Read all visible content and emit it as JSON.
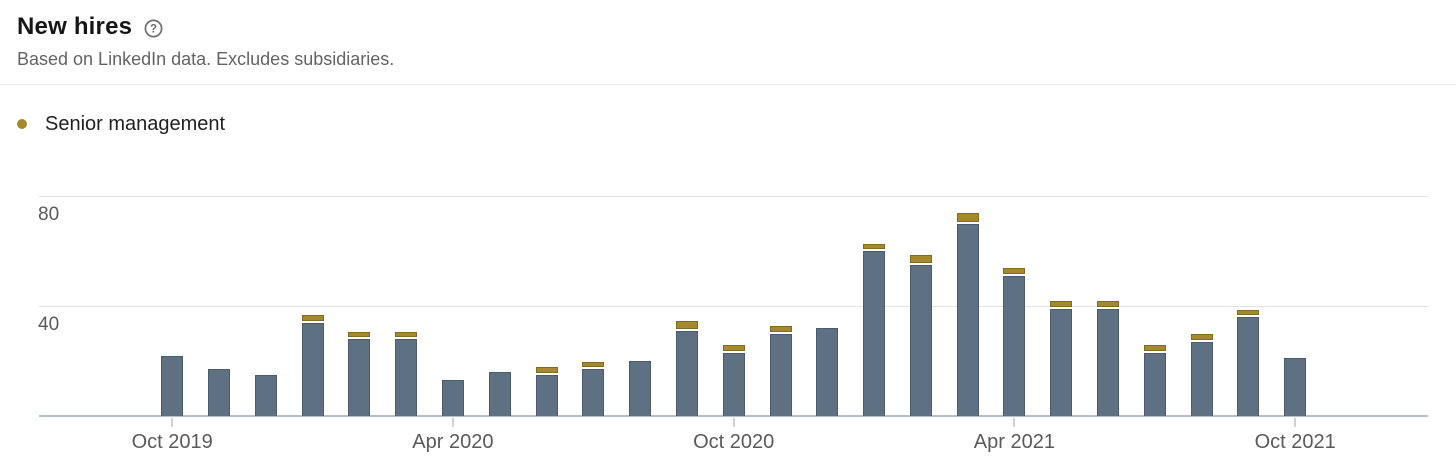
{
  "header": {
    "title": "New hires",
    "subtitle": "Based on LinkedIn data. Excludes subsidiaries.",
    "help_icon": "question-mark-circle-icon"
  },
  "legend": {
    "items": [
      {
        "label": "Senior management",
        "color": "#a5892c"
      }
    ]
  },
  "colors": {
    "base_bar_fill": "#5d7183",
    "base_bar_border": "#4a5c6c",
    "senior_fill": "#a5892c",
    "senior_border": "#7f6c20",
    "gridline": "#e3e3e3",
    "baseline": "#b5bfcb",
    "axis_text": "#5a5a5a"
  },
  "chart_data": {
    "type": "bar",
    "stacked": true,
    "title": "New hires",
    "xlabel": "",
    "ylabel": "",
    "ylim": [
      0,
      88
    ],
    "y_ticks": [
      40,
      80
    ],
    "grid": "horizontal",
    "legend_position": "top-left",
    "categories": [
      "Oct 2019",
      "Nov 2019",
      "Dec 2019",
      "Jan 2020",
      "Feb 2020",
      "Mar 2020",
      "Apr 2020",
      "May 2020",
      "Jun 2020",
      "Jul 2020",
      "Aug 2020",
      "Sep 2020",
      "Oct 2020",
      "Nov 2020",
      "Dec 2020",
      "Jan 2021",
      "Feb 2021",
      "Mar 2021",
      "Apr 2021",
      "May 2021",
      "Jun 2021",
      "Jul 2021",
      "Aug 2021",
      "Sep 2021",
      "Oct 2021"
    ],
    "series": [
      {
        "name": "New hires",
        "color": "#5d7183",
        "values": [
          22,
          17,
          15,
          34,
          28,
          28,
          13,
          16,
          15,
          17,
          20,
          31,
          23,
          30,
          32,
          60,
          55,
          70,
          51,
          39,
          39,
          23,
          27,
          36,
          21
        ]
      },
      {
        "name": "Senior management",
        "color": "#a5892c",
        "values": [
          0,
          0,
          0,
          2,
          2,
          2,
          0,
          0,
          2,
          2,
          0,
          3,
          2,
          2,
          0,
          2,
          3,
          3,
          2,
          2,
          2,
          2,
          2,
          2,
          0
        ]
      }
    ],
    "x_tick_labels": [
      "Oct 2019",
      "Apr 2020",
      "Oct 2020",
      "Apr 2021",
      "Oct 2021"
    ],
    "x_tick_indices": [
      0,
      6,
      12,
      18,
      24
    ]
  }
}
